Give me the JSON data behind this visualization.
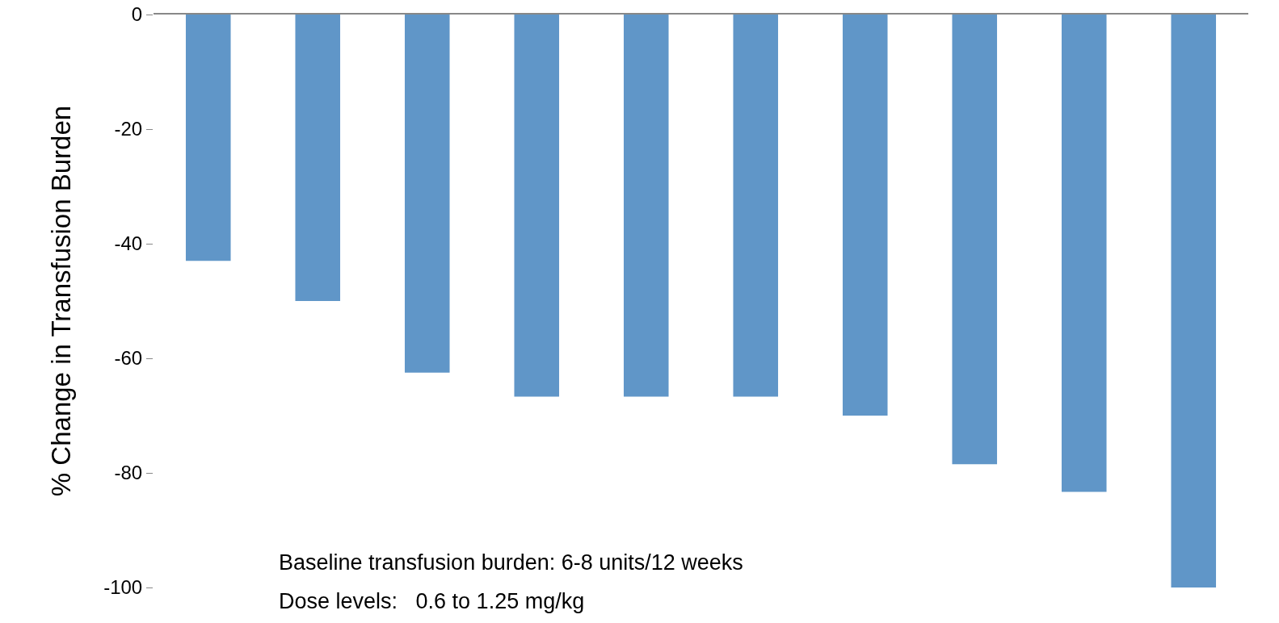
{
  "chart_data": {
    "type": "bar",
    "ylabel": "% Change in Transfusion Burden",
    "categories": [
      null,
      null,
      null,
      null,
      null,
      null,
      null,
      null,
      null,
      null
    ],
    "values": [
      -43,
      -50,
      -62.5,
      -66.7,
      -66.7,
      -66.7,
      -70,
      -78.5,
      -83.3,
      -100
    ],
    "color": "#6096c8",
    "ylim": [
      -100,
      0
    ],
    "yticks": [
      -100,
      -80,
      -60,
      -40,
      -20,
      0
    ],
    "grid": false,
    "tick_labels": "y",
    "annotations": [
      "Baseline transfusion burden: 6-8 units/12 weeks",
      "Dose levels:   0.6 to 1.25 mg/kg"
    ]
  }
}
